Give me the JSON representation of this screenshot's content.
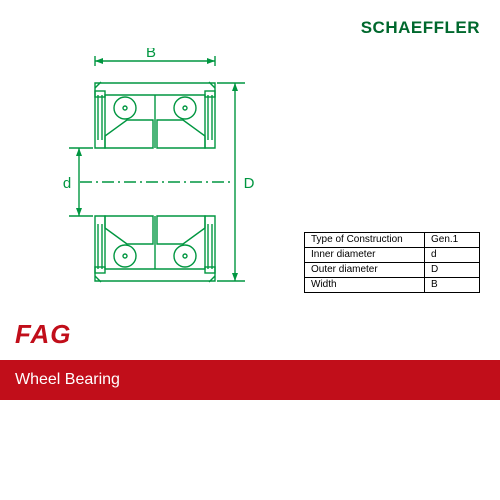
{
  "brand_top": "SCHAEFFLER",
  "brand_top_color": "#00682d",
  "brand_bottom": "FAG",
  "brand_bottom_color": "#c10e1a",
  "product_title": "Wheel Bearing",
  "red_bar_color": "#c10e1a",
  "diagram": {
    "stroke": "#009640",
    "stroke_w": 1.4,
    "labels": {
      "width": "B",
      "inner": "d",
      "outer": "D"
    },
    "label_fontsize": 15
  },
  "spec_table": {
    "rows": [
      [
        "Type of Construction",
        "Gen.1"
      ],
      [
        "Inner  diameter",
        "d"
      ],
      [
        "Outer diameter",
        "D"
      ],
      [
        "Width",
        "B"
      ]
    ]
  }
}
